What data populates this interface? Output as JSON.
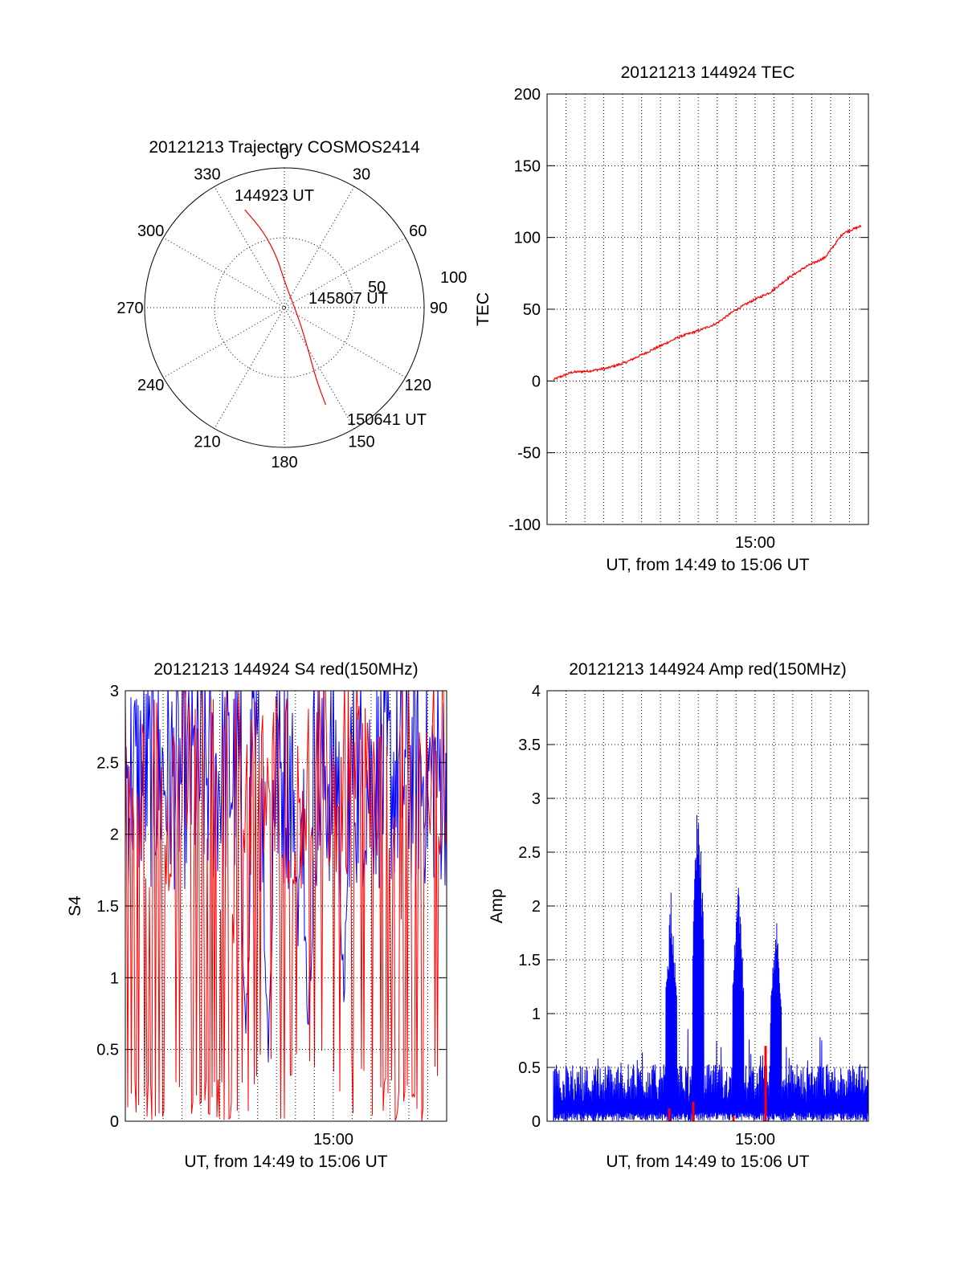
{
  "polar": {
    "title": "20121213 Trajectory COSMOS2414",
    "azimuth_labels": [
      "0",
      "30",
      "60",
      "90",
      "120",
      "150",
      "180",
      "210",
      "240",
      "270",
      "300",
      "330"
    ],
    "radial_labels": [
      "50",
      "100"
    ],
    "trajectory_color": "#ff0000",
    "trajectory_elevation_az": [
      [
        22,
        338
      ],
      [
        40,
        345
      ],
      [
        58,
        352
      ],
      [
        73,
        360
      ],
      [
        78,
        128
      ],
      [
        60,
        150
      ],
      [
        40,
        156
      ],
      [
        22,
        157
      ]
    ],
    "time_labels": [
      "144923 UT",
      "145807 UT",
      "150641 UT"
    ]
  },
  "tec": {
    "title": "20121213 144924 TEC",
    "ylabel": "TEC",
    "xlabel": "UT, from 14:49 to 15:06 UT",
    "x_tick_label": "15:00",
    "yticks": [
      "200",
      "150",
      "100",
      "50",
      "0",
      "-50",
      "-100"
    ],
    "ylim": [
      -100,
      200
    ],
    "series_color": "#ff0000"
  },
  "s4": {
    "title": "20121213 144924 S4 red(150MHz)",
    "ylabel": "S4",
    "xlabel": "UT, from 14:49 to 15:06 UT",
    "x_tick_label": "15:00",
    "yticks": [
      "3",
      "2.5",
      "2",
      "1.5",
      "1",
      "0.5",
      "0"
    ],
    "ylim": [
      0,
      3
    ],
    "colors": [
      "#0000ff",
      "#ff0000"
    ]
  },
  "amp": {
    "title": "20121213 144924 Amp red(150MHz)",
    "ylabel": "Amp",
    "xlabel": "UT, from 14:49 to 15:06 UT",
    "x_tick_label": "15:00",
    "yticks": [
      "4",
      "3.5",
      "3",
      "2.5",
      "2",
      "1.5",
      "1",
      "0.5",
      "0"
    ],
    "ylim": [
      0,
      4
    ],
    "colors": [
      "#0000ff",
      "#ff0000"
    ]
  },
  "chart_data": [
    {
      "type": "scatter",
      "title": "20121213 Trajectory COSMOS2414",
      "coordinate_system": "polar (azimuth deg clockwise from north, radius = 90 - elevation)",
      "series": [
        {
          "points_az_el": [
            [
              338,
              22
            ],
            [
              345,
              40
            ],
            [
              352,
              58
            ],
            [
              360,
              73
            ],
            [
              128,
              78
            ],
            [
              150,
              60
            ],
            [
              156,
              40
            ],
            [
              157,
              22
            ]
          ]
        }
      ]
    },
    {
      "type": "line",
      "title": "20121213 144924 TEC",
      "xlabel": "UT, from 14:49 to 15:06 UT",
      "ylabel": "TEC",
      "x_minutes_after_1449": [
        0,
        1,
        2,
        3,
        4,
        5,
        6,
        7,
        8,
        9,
        10,
        11,
        12,
        13,
        14,
        15,
        16,
        17
      ],
      "values": [
        1,
        6,
        7,
        9,
        13,
        19,
        25,
        31,
        35,
        40,
        49,
        56,
        62,
        72,
        80,
        86,
        103,
        108
      ],
      "ylim": [
        -100,
        200
      ],
      "grid": true
    },
    {
      "type": "line",
      "title": "20121213 144924 S4 red(150MHz)",
      "xlabel": "UT, from 14:49 to 15:06 UT",
      "ylabel": "S4",
      "ylim": [
        0,
        3
      ],
      "grid": true
    },
    {
      "type": "line",
      "title": "20121213 144924 Amp red(150MHz)",
      "xlabel": "UT, from 14:49 to 15:06 UT",
      "ylabel": "Amp",
      "ylim": [
        0,
        4
      ],
      "grid": true,
      "peaks_x_minutes_after_1449": [
        6.5,
        8.0,
        10.2,
        12.3
      ],
      "peaks_values": [
        2.15,
        3.25,
        2.35,
        1.95
      ]
    }
  ]
}
